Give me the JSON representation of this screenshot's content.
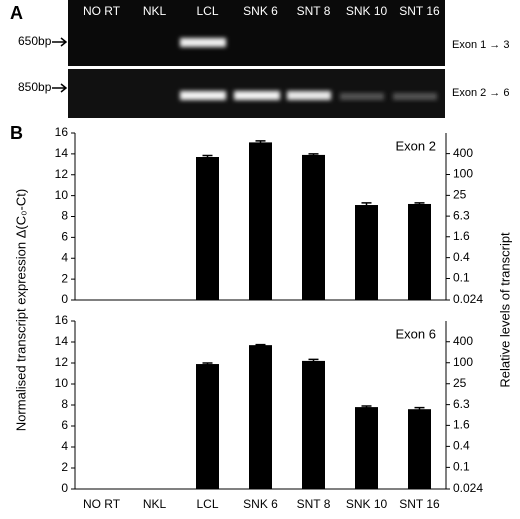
{
  "panel_labels": [
    "A",
    "B"
  ],
  "gel": {
    "lanes": [
      "NO RT",
      "NKL",
      "LCL",
      "SNK 6",
      "SNT 8",
      "SNK 10",
      "SNT 16"
    ],
    "size_markers": [
      "650bp",
      "850bp"
    ],
    "exon_labels": [
      "Exon 1 → 3",
      "Exon 2 → 6"
    ]
  },
  "y_label": "Normalised transcript expression  Δ(C₀-Ct)",
  "y2_label": "Relative levels of transcript",
  "chart_data": [
    {
      "type": "bar",
      "annotation": "Exon 2",
      "values": [
        null,
        null,
        13.7,
        15.1,
        13.9,
        9.1,
        9.2
      ],
      "errors": [
        null,
        null,
        0.15,
        0.15,
        0.1,
        0.2,
        0.1
      ],
      "color": "#000000",
      "ylim": [
        0,
        16
      ],
      "yticks": [
        0,
        2,
        4,
        6,
        8,
        10,
        12,
        14,
        16
      ],
      "y2scale": "log",
      "y2lim": [
        0.024,
        1573
      ],
      "y2ticks": [
        0.024,
        0.1,
        0.4,
        1.6,
        6.3,
        25,
        100,
        400
      ]
    },
    {
      "type": "bar",
      "annotation": "Exon 6",
      "categories": [
        "NO RT",
        "NKL",
        "LCL",
        "SNK 6",
        "SNT 8",
        "SNK 10",
        "SNT 16"
      ],
      "values": [
        null,
        null,
        11.9,
        13.7,
        12.2,
        7.8,
        7.6
      ],
      "errors": [
        null,
        null,
        0.1,
        0.05,
        0.15,
        0.1,
        0.15
      ],
      "color": "#000000",
      "ylim": [
        0,
        16
      ],
      "yticks": [
        0,
        2,
        4,
        6,
        8,
        10,
        12,
        14,
        16
      ],
      "y2scale": "log",
      "y2lim": [
        0.024,
        1573
      ],
      "y2ticks": [
        0.024,
        0.1,
        0.4,
        1.6,
        6.3,
        25,
        100,
        400
      ]
    }
  ]
}
